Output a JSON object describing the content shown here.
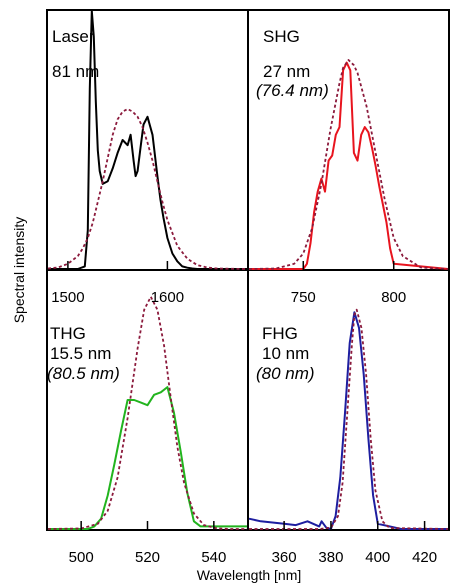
{
  "figure": {
    "ylabel": "Spectral intensity",
    "xlabel": "Wavelength [nm]",
    "fit_line_color": "#8b1a3c",
    "fit_line_style": "dashed"
  },
  "chart_data": [
    {
      "type": "line",
      "panel": "top-left",
      "annotation": [
        "Laser",
        "81 nm"
      ],
      "xlim": [
        1480,
        1680
      ],
      "xticks": [
        1500,
        1600
      ],
      "series": [
        {
          "color": "#000000",
          "x": [
            1480,
            1510,
            1517,
            1520,
            1522,
            1524,
            1526,
            1528,
            1530,
            1532,
            1535,
            1540,
            1545,
            1550,
            1555,
            1560,
            1563,
            1566,
            1568,
            1570,
            1573,
            1576,
            1580,
            1585,
            1590,
            1593,
            1596,
            1600,
            1605,
            1610,
            1615,
            1620,
            1625,
            1630,
            1680
          ],
          "y": [
            0,
            0,
            0.01,
            0.15,
            0.7,
            1.0,
            0.9,
            0.65,
            0.46,
            0.38,
            0.33,
            0.34,
            0.39,
            0.45,
            0.5,
            0.48,
            0.52,
            0.42,
            0.36,
            0.38,
            0.47,
            0.56,
            0.59,
            0.52,
            0.36,
            0.27,
            0.2,
            0.12,
            0.06,
            0.03,
            0.01,
            0.005,
            0.002,
            0,
            0
          ]
        },
        {
          "color": "#8b1a3c",
          "style": "dashed",
          "x": [
            1480,
            1490,
            1500,
            1510,
            1515,
            1520,
            1525,
            1530,
            1535,
            1540,
            1545,
            1550,
            1555,
            1560,
            1565,
            1570,
            1575,
            1580,
            1585,
            1590,
            1595,
            1600,
            1610,
            1620,
            1630,
            1640,
            1650,
            1660,
            1680
          ],
          "y": [
            0.002,
            0.006,
            0.02,
            0.05,
            0.08,
            0.12,
            0.18,
            0.26,
            0.34,
            0.43,
            0.52,
            0.58,
            0.61,
            0.62,
            0.61,
            0.59,
            0.55,
            0.49,
            0.42,
            0.34,
            0.26,
            0.19,
            0.09,
            0.04,
            0.015,
            0.006,
            0.002,
            0.001,
            0
          ]
        }
      ]
    },
    {
      "type": "line",
      "panel": "top-right",
      "annotation": [
        "SHG",
        "27 nm",
        "(76.4 nm)"
      ],
      "xlim": [
        720,
        830
      ],
      "xticks": [
        750,
        800
      ],
      "series": [
        {
          "color": "#e8141e",
          "x": [
            720,
            750,
            752,
            754,
            756,
            758,
            760,
            762,
            764,
            766,
            768,
            770,
            772,
            774,
            776,
            778,
            780,
            782,
            784,
            786,
            788,
            790,
            792,
            794,
            796,
            798,
            800,
            830
          ],
          "y": [
            0,
            0,
            0.02,
            0.1,
            0.22,
            0.3,
            0.35,
            0.3,
            0.42,
            0.44,
            0.52,
            0.55,
            0.77,
            0.8,
            0.77,
            0.45,
            0.42,
            0.52,
            0.55,
            0.53,
            0.47,
            0.4,
            0.32,
            0.25,
            0.18,
            0.08,
            0.02,
            0
          ]
        },
        {
          "color": "#8b1a3c",
          "style": "dashed",
          "x": [
            720,
            735,
            745,
            750,
            755,
            760,
            765,
            770,
            772,
            775,
            778,
            780,
            785,
            790,
            795,
            800,
            805,
            815,
            830
          ],
          "y": [
            0,
            0.002,
            0.02,
            0.06,
            0.16,
            0.33,
            0.54,
            0.72,
            0.78,
            0.81,
            0.79,
            0.76,
            0.63,
            0.45,
            0.27,
            0.12,
            0.05,
            0.006,
            0
          ]
        }
      ]
    },
    {
      "type": "line",
      "panel": "bottom-left",
      "annotation": [
        "THG",
        "15.5 nm",
        "(80.5 nm)"
      ],
      "xlim": [
        490,
        550
      ],
      "xticks": [
        500,
        520,
        540
      ],
      "series": [
        {
          "color": "#22b41e",
          "x": [
            490,
            502,
            504,
            506,
            508,
            510,
            512,
            514,
            516,
            518,
            520,
            522,
            524,
            526,
            528,
            530,
            532,
            534,
            536,
            550
          ],
          "y": [
            0,
            0,
            0.01,
            0.04,
            0.13,
            0.25,
            0.38,
            0.5,
            0.5,
            0.49,
            0.48,
            0.52,
            0.53,
            0.55,
            0.45,
            0.3,
            0.14,
            0.03,
            0.01,
            0.01
          ]
        },
        {
          "color": "#8b1a3c",
          "style": "dashed",
          "x": [
            490,
            500,
            505,
            508,
            511,
            514,
            517,
            519,
            521,
            523,
            525,
            527,
            529,
            531,
            534,
            537,
            541,
            545,
            550
          ],
          "y": [
            0,
            0.002,
            0.02,
            0.07,
            0.2,
            0.43,
            0.7,
            0.85,
            0.9,
            0.85,
            0.71,
            0.51,
            0.32,
            0.18,
            0.06,
            0.015,
            0.002,
            0,
            0
          ]
        }
      ]
    },
    {
      "type": "line",
      "panel": "bottom-right",
      "annotation": [
        "FHG",
        "10 nm",
        "(80 nm)"
      ],
      "xlim": [
        345,
        430
      ],
      "xticks": [
        360,
        380,
        400,
        420
      ],
      "series": [
        {
          "color": "#1e1ea0",
          "x": [
            345,
            350,
            355,
            360,
            365,
            370,
            375,
            376,
            378,
            380,
            382,
            384,
            386,
            388,
            390,
            392,
            394,
            396,
            398,
            400,
            410,
            430
          ],
          "y": [
            0.04,
            0.03,
            0.025,
            0.02,
            0.015,
            0.03,
            0.01,
            0.03,
            0.005,
            0,
            0.05,
            0.2,
            0.45,
            0.72,
            0.84,
            0.78,
            0.6,
            0.35,
            0.13,
            0.02,
            0,
            0
          ]
        },
        {
          "color": "#8b1a3c",
          "style": "dashed",
          "x": [
            345,
            375,
            380,
            383,
            385,
            387,
            389,
            390,
            391,
            393,
            395,
            397,
            399,
            402,
            405,
            430
          ],
          "y": [
            0,
            0,
            0.005,
            0.05,
            0.18,
            0.45,
            0.72,
            0.83,
            0.85,
            0.78,
            0.6,
            0.35,
            0.15,
            0.03,
            0.004,
            0
          ]
        }
      ]
    }
  ]
}
